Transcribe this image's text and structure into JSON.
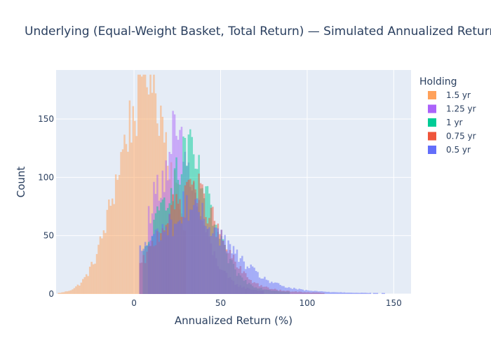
{
  "chart_data": {
    "type": "histogram",
    "title": "Underlying (Equal-Weight Basket, Total Return) — Simulated Annualized Returns by Holding Period",
    "xlabel": "Annualized Return (%)",
    "ylabel": "Count",
    "barmode": "overlay",
    "bin_width": 1,
    "xlim": [
      -45,
      160
    ],
    "ylim": [
      0,
      192
    ],
    "xticks": [
      0,
      50,
      100,
      150
    ],
    "yticks": [
      0,
      50,
      100,
      150
    ],
    "grid": true,
    "legend": {
      "title": "Holding",
      "placement": "right"
    },
    "series": [
      {
        "name": "1.5 yr",
        "color": "#FFA15A",
        "opacity": 0.5,
        "profile": {
          "center": 5,
          "scale": 15,
          "peak": 165,
          "range": [
            -44,
            30
          ]
        }
      },
      {
        "name": "1.25 yr",
        "color": "#AB63FA",
        "opacity": 0.5,
        "profile": {
          "center": 22,
          "scale": 14,
          "peak": 110,
          "range": [
            8,
            75
          ]
        }
      },
      {
        "name": "1 yr",
        "color": "#00CC96",
        "opacity": 0.5,
        "profile": {
          "center": 28,
          "scale": 15,
          "peak": 103,
          "range": [
            5,
            90
          ]
        }
      },
      {
        "name": "0.75 yr",
        "color": "#EF553B",
        "opacity": 0.5,
        "profile": {
          "center": 30,
          "scale": 17,
          "peak": 80,
          "range": [
            3,
            110
          ]
        }
      },
      {
        "name": "0.5 yr",
        "color": "#636EFA",
        "opacity": 0.5,
        "profile": {
          "center": 28,
          "scale": 24,
          "peak": 62,
          "range": [
            3,
            160
          ]
        }
      }
    ]
  }
}
